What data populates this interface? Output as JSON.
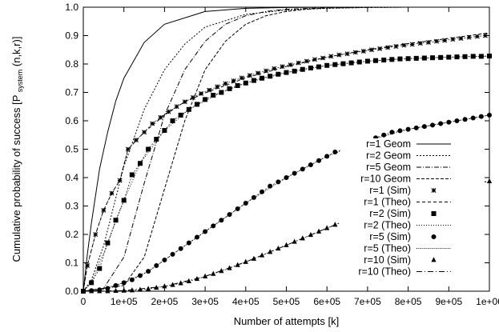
{
  "chart_data": {
    "type": "line",
    "xlabel": "Number of attempts [k]",
    "ylabel_main": "Cumulative probability of success [P",
    "ylabel_sub": "system",
    "ylabel_end": "(n,k,r)]",
    "xlim": [
      0,
      1000000
    ],
    "ylim": [
      0,
      1.0
    ],
    "x_ticks": [
      {
        "value": 0,
        "label": "0"
      },
      {
        "value": 100000,
        "label": "1e+05"
      },
      {
        "value": 200000,
        "label": "2e+05"
      },
      {
        "value": 300000,
        "label": "3e+05"
      },
      {
        "value": 400000,
        "label": "4e+05"
      },
      {
        "value": 500000,
        "label": "5e+05"
      },
      {
        "value": 600000,
        "label": "6e+05"
      },
      {
        "value": 700000,
        "label": "7e+05"
      },
      {
        "value": 800000,
        "label": "8e+05"
      },
      {
        "value": 900000,
        "label": "9e+05"
      },
      {
        "value": 1000000,
        "label": "1e+06"
      }
    ],
    "y_ticks": [
      {
        "value": 0.0,
        "label": "0.0"
      },
      {
        "value": 0.1,
        "label": "0.1"
      },
      {
        "value": 0.2,
        "label": "0.2"
      },
      {
        "value": 0.3,
        "label": "0.3"
      },
      {
        "value": 0.4,
        "label": "0.4"
      },
      {
        "value": 0.5,
        "label": "0.5"
      },
      {
        "value": 0.6,
        "label": "0.6"
      },
      {
        "value": 0.7,
        "label": "0.7"
      },
      {
        "value": 0.8,
        "label": "0.8"
      },
      {
        "value": 0.9,
        "label": "0.9"
      },
      {
        "value": 1.0,
        "label": "1.0"
      }
    ],
    "grid": false,
    "legend_position": "bottom-right",
    "series": [
      {
        "name": "r=1  Geom",
        "style": "solid",
        "x": [
          0,
          10000,
          20000,
          40000,
          60000,
          80000,
          100000,
          150000,
          200000,
          300000,
          400000,
          500000,
          700000,
          1000000
        ],
        "y": [
          0.0,
          0.13,
          0.24,
          0.43,
          0.56,
          0.67,
          0.75,
          0.876,
          0.94,
          0.985,
          0.996,
          0.999,
          1.0,
          1.0
        ]
      },
      {
        "name": "r=2  Geom",
        "style": "dot",
        "x": [
          0,
          20000,
          50000,
          100000,
          150000,
          200000,
          250000,
          300000,
          400000,
          500000,
          600000,
          700000,
          800000,
          1000000
        ],
        "y": [
          0.0,
          0.04,
          0.16,
          0.44,
          0.64,
          0.78,
          0.87,
          0.93,
          0.975,
          0.99,
          0.996,
          0.999,
          1.0,
          1.0
        ]
      },
      {
        "name": "r=5  Geom",
        "style": "dashdot",
        "x": [
          0,
          50000,
          100000,
          150000,
          200000,
          250000,
          300000,
          350000,
          400000,
          450000,
          500000,
          600000,
          700000,
          800000,
          1000000
        ],
        "y": [
          0.0,
          0.01,
          0.12,
          0.38,
          0.62,
          0.78,
          0.88,
          0.94,
          0.97,
          0.985,
          0.993,
          0.998,
          1.0,
          1.0,
          1.0
        ]
      },
      {
        "name": "r=10 Geom",
        "style": "dashed",
        "x": [
          0,
          100000,
          150000,
          200000,
          250000,
          300000,
          350000,
          400000,
          450000,
          500000,
          550000,
          600000,
          700000,
          800000,
          1000000
        ],
        "y": [
          0.0,
          0.02,
          0.12,
          0.36,
          0.6,
          0.78,
          0.88,
          0.94,
          0.97,
          0.985,
          0.993,
          0.997,
          0.999,
          1.0,
          1.0
        ]
      },
      {
        "name": "r=1  (Sim)",
        "style": "marker-x",
        "markers": true,
        "x": [
          0,
          10000,
          30000,
          50000,
          70000,
          90000,
          110000,
          130000,
          150000,
          170000,
          190000,
          210000,
          230000,
          250000,
          270000,
          290000,
          310000,
          330000,
          350000,
          370000,
          390000,
          410000,
          430000,
          450000,
          470000,
          490000,
          510000,
          530000,
          550000,
          570000,
          590000,
          610000,
          630000,
          650000,
          670000,
          690000,
          710000,
          730000,
          750000,
          770000,
          790000,
          810000,
          830000,
          850000,
          870000,
          890000,
          910000,
          930000,
          950000,
          970000,
          990000
        ],
        "y": [
          0.0,
          0.09,
          0.2,
          0.285,
          0.345,
          0.39,
          0.5,
          0.532,
          0.56,
          0.59,
          0.612,
          0.632,
          0.65,
          0.667,
          0.682,
          0.696,
          0.708,
          0.72,
          0.731,
          0.741,
          0.751,
          0.76,
          0.768,
          0.776,
          0.784,
          0.791,
          0.797,
          0.804,
          0.81,
          0.816,
          0.821,
          0.827,
          0.832,
          0.836,
          0.841,
          0.845,
          0.85,
          0.854,
          0.858,
          0.862,
          0.866,
          0.869,
          0.873,
          0.876,
          0.88,
          0.883,
          0.887,
          0.89,
          0.894,
          0.897,
          0.9
        ]
      },
      {
        "name": "r=1  (Theo)",
        "style": "dashed-thin",
        "markers": false,
        "x": [
          0,
          10000,
          30000,
          50000,
          70000,
          90000,
          110000,
          150000,
          200000,
          250000,
          300000,
          400000,
          500000,
          600000,
          700000,
          800000,
          900000,
          1000000
        ],
        "y": [
          0.0,
          0.09,
          0.2,
          0.285,
          0.345,
          0.39,
          0.5,
          0.56,
          0.62,
          0.667,
          0.698,
          0.751,
          0.791,
          0.824,
          0.85,
          0.872,
          0.89,
          0.91
        ]
      },
      {
        "name": "r=2  (Sim)",
        "style": "marker-square",
        "markers": true,
        "x": [
          0,
          20000,
          40000,
          60000,
          80000,
          100000,
          120000,
          140000,
          160000,
          180000,
          200000,
          220000,
          240000,
          260000,
          280000,
          300000,
          320000,
          340000,
          360000,
          380000,
          400000,
          420000,
          440000,
          460000,
          480000,
          500000,
          520000,
          540000,
          560000,
          580000,
          600000,
          620000,
          640000,
          660000,
          680000,
          700000,
          720000,
          740000,
          760000,
          780000,
          800000,
          820000,
          840000,
          860000,
          880000,
          900000,
          920000,
          940000,
          960000,
          980000,
          1000000
        ],
        "y": [
          0.0,
          0.03,
          0.08,
          0.17,
          0.25,
          0.32,
          0.41,
          0.45,
          0.5,
          0.535,
          0.566,
          0.6,
          0.62,
          0.64,
          0.658,
          0.675,
          0.69,
          0.7,
          0.713,
          0.724,
          0.733,
          0.742,
          0.75,
          0.757,
          0.764,
          0.77,
          0.775,
          0.781,
          0.786,
          0.79,
          0.795,
          0.798,
          0.801,
          0.804,
          0.807,
          0.81,
          0.812,
          0.814,
          0.816,
          0.818,
          0.819,
          0.82,
          0.821,
          0.822,
          0.823,
          0.824,
          0.825,
          0.826,
          0.827,
          0.827,
          0.828
        ]
      },
      {
        "name": "r=2  (Theo)",
        "style": "dotted",
        "markers": false,
        "x": [
          0,
          20000,
          60000,
          100000,
          140000,
          200000,
          260000,
          340000,
          400000,
          500000,
          600000,
          700000,
          800000,
          900000,
          1000000
        ],
        "y": [
          0.0,
          0.03,
          0.17,
          0.32,
          0.45,
          0.566,
          0.64,
          0.7,
          0.733,
          0.77,
          0.795,
          0.81,
          0.819,
          0.824,
          0.828
        ]
      },
      {
        "name": "r=5  (Sim)",
        "style": "marker-circle",
        "markers": true,
        "x": [
          0,
          20000,
          40000,
          60000,
          80000,
          100000,
          120000,
          140000,
          160000,
          180000,
          200000,
          220000,
          240000,
          260000,
          280000,
          300000,
          320000,
          340000,
          360000,
          380000,
          400000,
          420000,
          440000,
          460000,
          480000,
          500000,
          520000,
          540000,
          560000,
          580000,
          600000,
          620000,
          640000,
          660000,
          680000,
          700000,
          720000,
          740000,
          760000,
          780000,
          800000,
          820000,
          840000,
          860000,
          880000,
          900000,
          920000,
          940000,
          960000,
          980000,
          1000000
        ],
        "y": [
          0.0,
          0.002,
          0.005,
          0.01,
          0.02,
          0.03,
          0.04,
          0.055,
          0.07,
          0.09,
          0.11,
          0.13,
          0.15,
          0.17,
          0.19,
          0.21,
          0.23,
          0.25,
          0.27,
          0.29,
          0.31,
          0.33,
          0.35,
          0.37,
          0.385,
          0.4,
          0.415,
          0.43,
          0.445,
          0.46,
          0.475,
          0.49,
          0.5,
          0.51,
          0.52,
          0.53,
          0.54,
          0.55,
          0.56,
          0.565,
          0.57,
          0.575,
          0.58,
          0.585,
          0.59,
          0.595,
          0.6,
          0.605,
          0.61,
          0.615,
          0.62
        ]
      },
      {
        "name": "r=5  (Theo)",
        "style": "dotted-fine",
        "markers": false,
        "x": [
          0,
          40000,
          100000,
          160000,
          200000,
          300000,
          400000,
          500000,
          600000,
          700000,
          800000,
          900000,
          1000000
        ],
        "y": [
          0.0,
          0.005,
          0.03,
          0.07,
          0.11,
          0.21,
          0.31,
          0.4,
          0.475,
          0.53,
          0.57,
          0.595,
          0.62
        ]
      },
      {
        "name": "r=10 (Sim)",
        "style": "marker-triangle",
        "markers": true,
        "x": [
          0,
          20000,
          40000,
          60000,
          80000,
          100000,
          120000,
          140000,
          160000,
          180000,
          200000,
          220000,
          240000,
          260000,
          280000,
          300000,
          320000,
          340000,
          360000,
          380000,
          400000,
          420000,
          440000,
          460000,
          480000,
          500000,
          520000,
          540000,
          560000,
          580000,
          600000,
          620000,
          640000,
          660000,
          680000,
          700000,
          720000,
          740000,
          760000,
          780000,
          800000,
          820000,
          840000,
          860000,
          880000,
          900000,
          920000,
          940000,
          960000,
          980000,
          1000000
        ],
        "y": [
          0.0,
          0.0,
          0.0,
          0.0,
          0.001,
          0.002,
          0.003,
          0.005,
          0.008,
          0.012,
          0.017,
          0.022,
          0.028,
          0.035,
          0.043,
          0.052,
          0.061,
          0.071,
          0.081,
          0.092,
          0.103,
          0.114,
          0.126,
          0.138,
          0.15,
          0.162,
          0.174,
          0.186,
          0.198,
          0.21,
          0.222,
          0.234,
          0.245,
          0.257,
          0.268,
          0.279,
          0.29,
          0.3,
          0.31,
          0.32,
          0.329,
          0.338,
          0.346,
          0.354,
          0.361,
          0.367,
          0.372,
          0.377,
          0.381,
          0.384,
          0.387
        ]
      },
      {
        "name": "r=10 (Theo)",
        "style": "dashdot-thin",
        "markers": false,
        "x": [
          0,
          100000,
          200000,
          300000,
          400000,
          500000,
          600000,
          700000,
          800000,
          900000,
          1000000
        ],
        "y": [
          0.0,
          0.002,
          0.017,
          0.052,
          0.103,
          0.162,
          0.222,
          0.279,
          0.329,
          0.367,
          0.387
        ]
      }
    ]
  }
}
